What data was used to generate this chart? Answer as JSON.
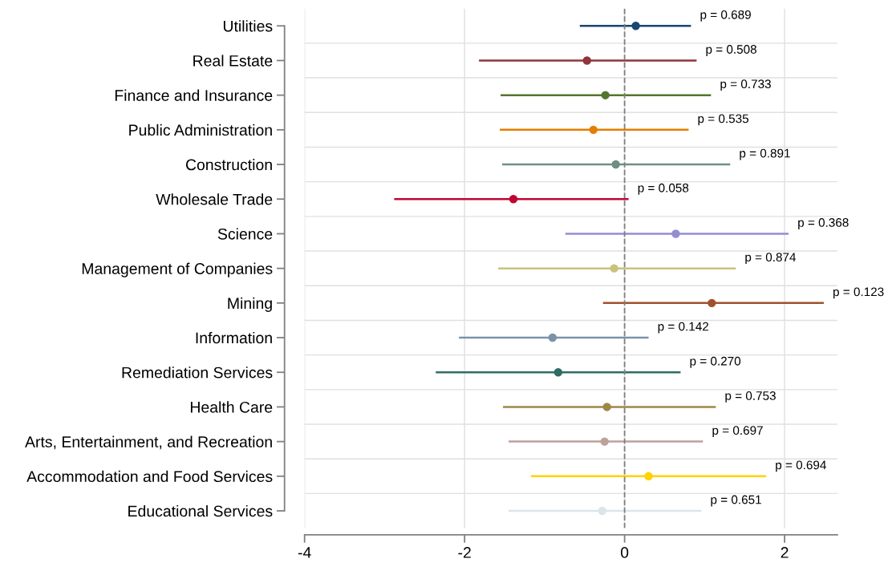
{
  "chart_data": {
    "type": "scatter",
    "orientation": "horizontal",
    "categories": [
      "Utilities",
      "Real Estate",
      "Finance and Insurance",
      "Public Administration",
      "Construction",
      "Wholesale Trade",
      "Science",
      "Management of Companies",
      "Mining",
      "Information",
      "Remediation Services",
      "Health Care",
      "Arts, Entertainment, and Recreation",
      "Accommodation and Food Services",
      "Educational Services"
    ],
    "values": [
      0.14,
      -0.47,
      -0.24,
      -0.39,
      -0.11,
      -1.39,
      0.64,
      -0.13,
      1.09,
      -0.9,
      -0.83,
      -0.22,
      -0.25,
      0.3,
      -0.28
    ],
    "errors": [
      [
        -0.56,
        0.83
      ],
      [
        -1.82,
        0.9
      ],
      [
        -1.55,
        1.08
      ],
      [
        -1.56,
        0.8
      ],
      [
        -1.53,
        1.32
      ],
      [
        -2.88,
        0.05
      ],
      [
        -0.74,
        2.05
      ],
      [
        -1.58,
        1.39
      ],
      [
        -0.27,
        2.49
      ],
      [
        -2.07,
        0.3
      ],
      [
        -2.36,
        0.7
      ],
      [
        -1.52,
        1.14
      ],
      [
        -1.45,
        0.98
      ],
      [
        -1.17,
        1.77
      ],
      [
        -1.45,
        0.96
      ]
    ],
    "colors": [
      "#1a476f",
      "#90353b",
      "#55752f",
      "#e37e00",
      "#6e8e84",
      "#c10534",
      "#938dd2",
      "#cac27e",
      "#a0522d",
      "#7b92a8",
      "#2d6d66",
      "#9c8847",
      "#bfa19c",
      "#ffd200",
      "#d9e6eb"
    ],
    "marker": "circle",
    "xlim": [
      -4,
      2.66
    ],
    "xticks": [
      -4,
      -2,
      0,
      2
    ],
    "grid": true,
    "legend": false,
    "ref_lines": [
      {
        "axis": "x",
        "value": 0,
        "color": "#808080",
        "line_style": "dashed"
      }
    ],
    "annotations": [
      "p = 0.689",
      "p = 0.508",
      "p = 0.733",
      "p = 0.535",
      "p = 0.891",
      "p = 0.058",
      "p = 0.368",
      "p = 0.874",
      "p = 0.123",
      "p = 0.142",
      "p = 0.270",
      "p = 0.753",
      "p = 0.697",
      "p = 0.694",
      "p = 0.651"
    ]
  }
}
